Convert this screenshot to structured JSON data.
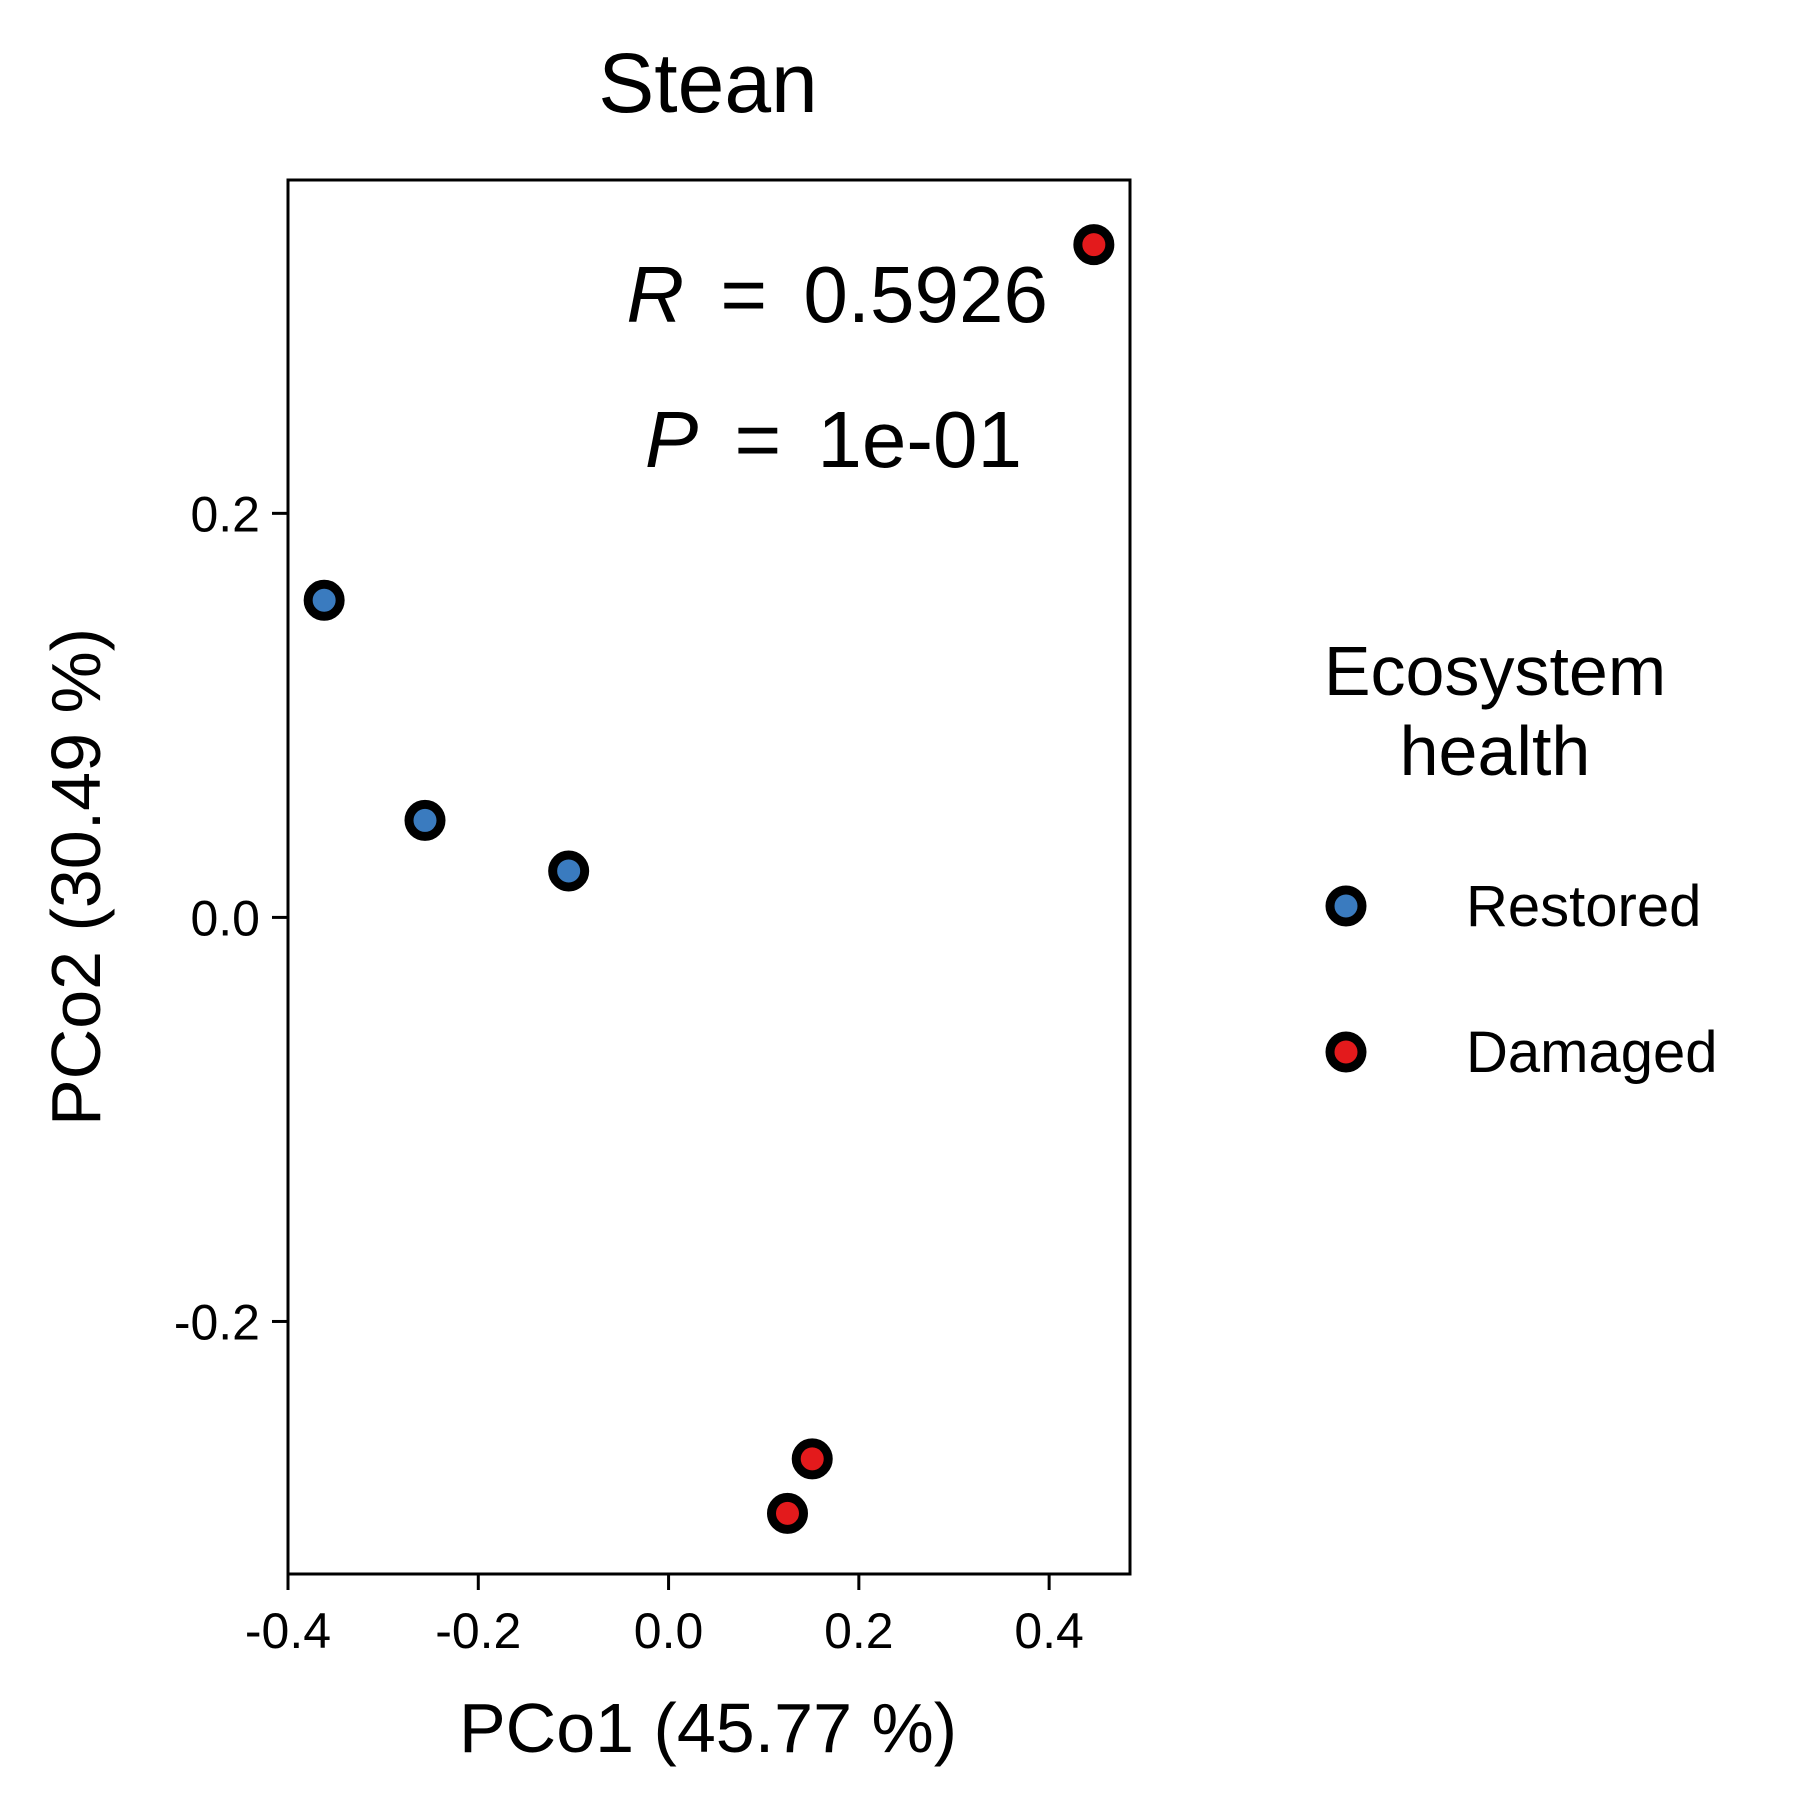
{
  "chart_data": {
    "type": "scatter",
    "title": "Stean",
    "xlabel": "PCo1 (45.77 %)",
    "ylabel": "PCo2 (30.49 %)",
    "xlim": [
      -0.4,
      0.485
    ],
    "ylim": [
      -0.325,
      0.365
    ],
    "xticks": [
      -0.4,
      -0.2,
      0.0,
      0.2,
      0.4
    ],
    "xtick_labels": [
      "-0.4",
      "-0.2",
      "0.0",
      "0.2",
      "0.4"
    ],
    "yticks": [
      -0.2,
      0.0,
      0.2
    ],
    "ytick_labels": [
      "-0.2",
      "0.0",
      "0.2"
    ],
    "grid": false,
    "series": [
      {
        "name": "Restored",
        "color": "#3a7bbf",
        "points": [
          {
            "x": -0.362,
            "y": 0.157
          },
          {
            "x": -0.256,
            "y": 0.048
          },
          {
            "x": -0.105,
            "y": 0.023
          }
        ]
      },
      {
        "name": "Damaged",
        "color": "#e31a1c",
        "points": [
          {
            "x": 0.447,
            "y": 0.333
          },
          {
            "x": 0.151,
            "y": -0.268
          },
          {
            "x": 0.125,
            "y": -0.295
          }
        ]
      }
    ],
    "annotations": {
      "r_symbol": "R",
      "r_equals": "=",
      "r_value": "0.5926",
      "p_symbol": "P",
      "p_equals": "=",
      "p_value": "1e-01"
    },
    "legend": {
      "title_line1": "Ecosystem",
      "title_line2": "health",
      "position": "right"
    }
  }
}
